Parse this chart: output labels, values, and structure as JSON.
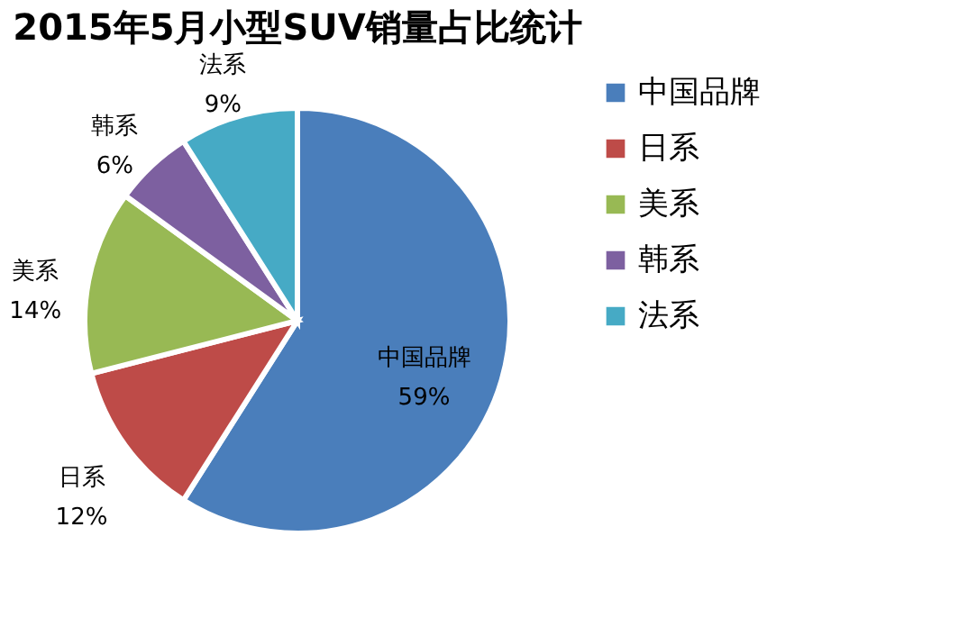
{
  "chart_data": {
    "type": "pie",
    "title": "2015年5月小型SUV销量占比统计",
    "categories": [
      "中国品牌",
      "日系",
      "美系",
      "韩系",
      "法系"
    ],
    "values": [
      59,
      12,
      14,
      6,
      9
    ],
    "value_labels": [
      "59%",
      "12%",
      "14%",
      "6%",
      "9%"
    ],
    "colors": [
      "#4a7ebb",
      "#be4b48",
      "#98b954",
      "#7d60a0",
      "#46aac5"
    ],
    "legend": "right"
  }
}
